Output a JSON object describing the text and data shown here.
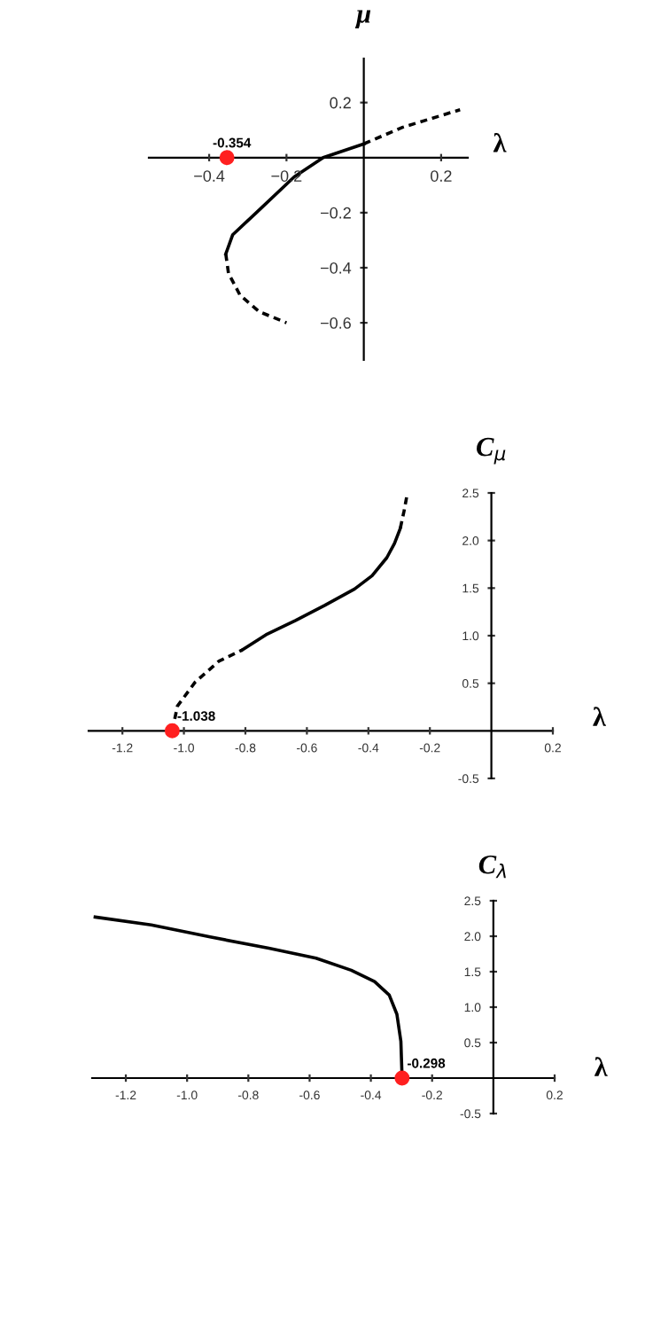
{
  "chart_data": [
    {
      "type": "line",
      "xlabel": "λ",
      "ylabel": "μ",
      "xlim": [
        -0.556,
        0.269
      ],
      "ylim": [
        -0.735,
        0.36
      ],
      "xticks": [
        {
          "value": -0.4,
          "label": "−0.4"
        },
        {
          "value": -0.2,
          "label": "−0.2"
        },
        0.2
      ],
      "yticks": [
        {
          "value": -0.6,
          "label": "−0.6"
        },
        {
          "value": -0.4,
          "label": "−0.4"
        },
        {
          "value": -0.2,
          "label": "−0.2"
        },
        0.2
      ],
      "grid": false,
      "series": [
        {
          "color": "#000000",
          "line_style": "solid",
          "x": [
            -0.357,
            -0.339,
            -0.278,
            -0.18,
            -0.105,
            0.0
          ],
          "values": [
            -0.35,
            -0.28,
            -0.2,
            -0.07,
            0.0,
            0.05
          ]
        },
        {
          "color": "#000000",
          "line_style": "dashed",
          "x": [
            0.0,
            0.1,
            0.249
          ],
          "values": [
            0.05,
            0.11,
            0.174
          ]
        },
        {
          "color": "#000000",
          "line_style": "dashed",
          "x": [
            -0.357,
            -0.35,
            -0.32,
            -0.27,
            -0.2
          ],
          "values": [
            -0.35,
            -0.42,
            -0.5,
            -0.56,
            -0.6
          ]
        },
        {
          "type": "scatter",
          "color": "#ff2020",
          "x": [
            -0.354
          ],
          "values": [
            0
          ]
        }
      ],
      "annotations": [
        {
          "text": "-0.354",
          "x": -0.354,
          "y": 0
        }
      ]
    },
    {
      "type": "line",
      "xlabel": "λ",
      "ylabel": "C$_{μ}$",
      "xlim": [
        -1.31,
        0.2
      ],
      "ylim": [
        -0.5,
        2.5
      ],
      "xticks": [
        -1.2,
        {
          "value": -1.0,
          "label": "-1.0"
        },
        -0.8,
        -0.6,
        -0.4,
        -0.2,
        0.2
      ],
      "yticks": [
        -0.5,
        0.5,
        {
          "value": 1.0,
          "label": "1.0"
        },
        1.5,
        {
          "value": 2.0,
          "label": "2.0"
        },
        2.5
      ],
      "grid": false,
      "series": [
        {
          "color": "#000000",
          "line_style": "dashed",
          "x": [
            -1.038,
            -1.021,
            -0.964,
            -0.887,
            -0.81
          ],
          "values": [
            0,
            0.26,
            0.51,
            0.73,
            0.85
          ]
        },
        {
          "color": "#000000",
          "line_style": "solid",
          "x": [
            -0.81,
            -0.733,
            -0.637,
            -0.541,
            -0.445,
            -0.388,
            -0.34,
            -0.315,
            -0.296
          ],
          "values": [
            0.85,
            1.01,
            1.16,
            1.32,
            1.49,
            1.63,
            1.82,
            1.97,
            2.13
          ]
        },
        {
          "color": "#000000",
          "line_style": "dashed",
          "x": [
            -0.296,
            -0.284,
            -0.273
          ],
          "values": [
            2.13,
            2.31,
            2.5
          ]
        },
        {
          "type": "scatter",
          "color": "#ff2020",
          "x": [
            -1.038
          ],
          "values": [
            0
          ]
        }
      ],
      "annotations": [
        {
          "text": "-1.038",
          "x": -1.038,
          "y": 0
        }
      ]
    },
    {
      "type": "line",
      "xlabel": "λ",
      "ylabel": "C$_{λ}$",
      "xlim": [
        -1.31,
        0.2
      ],
      "ylim": [
        -0.5,
        2.5
      ],
      "xticks": [
        -1.2,
        {
          "value": -1.0,
          "label": "-1.0"
        },
        -0.8,
        -0.6,
        -0.4,
        -0.2,
        0.2
      ],
      "yticks": [
        -0.5,
        0.5,
        {
          "value": 1.0,
          "label": "1.0"
        },
        1.5,
        {
          "value": 2.0,
          "label": "2.0"
        },
        2.5
      ],
      "grid": false,
      "series": [
        {
          "color": "#000000",
          "line_style": "solid",
          "x": [
            -1.3,
            -1.117,
            -0.925,
            -0.733,
            -0.579,
            -0.464,
            -0.388,
            -0.34,
            -0.315,
            -0.302,
            -0.298
          ],
          "values": [
            2.27,
            2.16,
            1.99,
            1.83,
            1.69,
            1.52,
            1.36,
            1.17,
            0.9,
            0.52,
            0
          ]
        },
        {
          "type": "scatter",
          "color": "#ff2020",
          "x": [
            -0.298
          ],
          "values": [
            0
          ]
        }
      ],
      "annotations": [
        {
          "text": "-0.298",
          "x": -0.298,
          "y": 0
        }
      ]
    }
  ]
}
